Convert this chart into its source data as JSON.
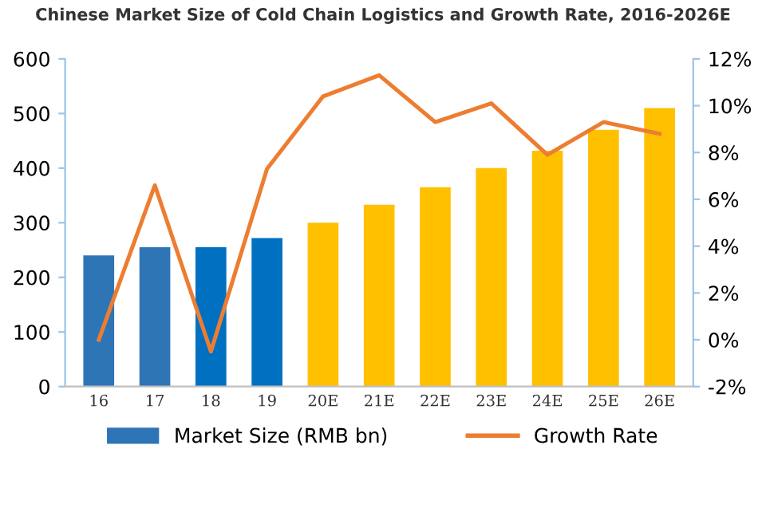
{
  "chart_data": {
    "type": "bar",
    "title": "Chinese Market Size of Cold Chain Logistics and Growth Rate, 2016-2026E",
    "categories": [
      "16",
      "17",
      "18",
      "19",
      "20E",
      "21E",
      "22E",
      "23E",
      "24E",
      "25E",
      "26E"
    ],
    "series": [
      {
        "name": "Market Size (RMB bn)",
        "color": "#2e75b6",
        "colors": [
          "#2e75b6",
          "#2e75b6",
          "#0070c0",
          "#0070c0",
          "#ffc000",
          "#ffc000",
          "#ffc000",
          "#ffc000",
          "#ffc000",
          "#ffc000",
          "#ffc000"
        ],
        "values": [
          240,
          255,
          255,
          272,
          300,
          333,
          365,
          400,
          432,
          470,
          510
        ]
      },
      {
        "name": "Growth Rate",
        "type": "line",
        "axis": "y2",
        "color": "#ed7d31",
        "values": [
          0.0,
          6.6,
          -0.5,
          7.3,
          10.4,
          11.3,
          9.3,
          10.1,
          7.9,
          9.3,
          8.8
        ]
      }
    ],
    "ylim": [
      0,
      600
    ],
    "yticks": [
      0,
      100,
      200,
      300,
      400,
      500,
      600
    ],
    "y2lim": [
      -2,
      12
    ],
    "y2ticks": [
      {
        "value": -2,
        "label": "-2%"
      },
      {
        "value": 0,
        "label": "0%"
      },
      {
        "value": 2,
        "label": "2%"
      },
      {
        "value": 4,
        "label": "4%"
      },
      {
        "value": 6,
        "label": "6%"
      },
      {
        "value": 8,
        "label": "8%"
      },
      {
        "value": 10,
        "label": "10%"
      },
      {
        "value": 12,
        "label": "12%"
      }
    ],
    "legend": "bottom",
    "marker": "none",
    "line_style": "solid"
  }
}
